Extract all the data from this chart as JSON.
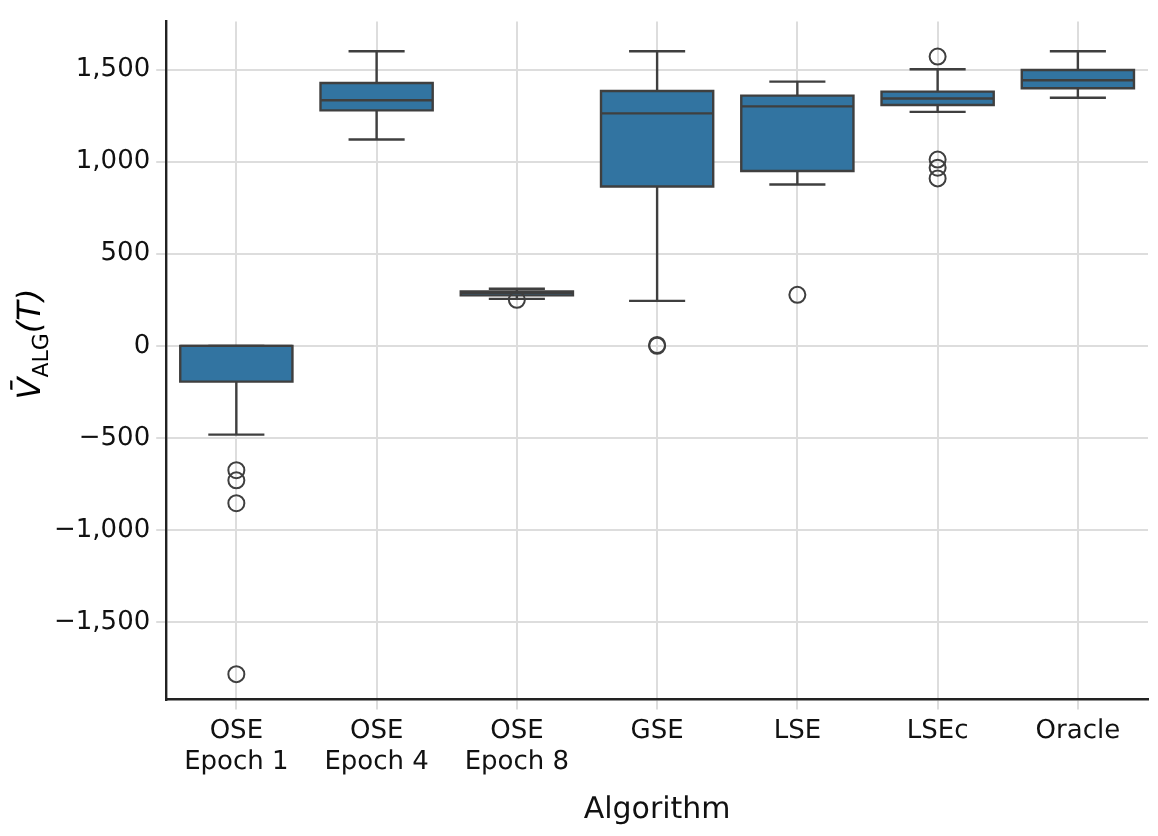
{
  "chart_data": {
    "type": "box",
    "xlabel": "Algorithm",
    "ylabel": "V̄$_{ALG}$(T)",
    "categories": [
      "OSE\nEpoch 1",
      "OSE\nEpoch 4",
      "OSE\nEpoch 8",
      "GSE",
      "LSE",
      "LSEc",
      "Oracle"
    ],
    "color": "#3274a1",
    "boxes": [
      {
        "low": -482,
        "q1": -194,
        "median": 0,
        "q3": 0,
        "high": 0,
        "outliers": [
          -675,
          -730,
          -854,
          -1782
        ]
      },
      {
        "low": 1120,
        "q1": 1278,
        "median": 1333,
        "q3": 1427,
        "high": 1599
      },
      {
        "low": 255,
        "q1": 274,
        "median": 288,
        "q3": 296,
        "high": 310,
        "outliers": [
          250
        ]
      },
      {
        "low": 244,
        "q1": 865,
        "median": 1262,
        "q3": 1383,
        "high": 1599,
        "outliers": [
          0,
          5
        ]
      },
      {
        "low": 876,
        "q1": 949,
        "median": 1300,
        "q3": 1358,
        "high": 1434,
        "outliers": [
          277
        ]
      },
      {
        "low": 1270,
        "q1": 1307,
        "median": 1343,
        "q3": 1380,
        "high": 1501,
        "outliers": [
          1570,
          1011,
          967,
          909
        ]
      },
      {
        "low": 1347,
        "q1": 1398,
        "median": 1442,
        "q3": 1497,
        "high": 1599
      }
    ],
    "ylim": [
      -1920,
      1760
    ],
    "yticks": [
      {
        "value": -1500,
        "label": "−1,500"
      },
      {
        "value": -1000,
        "label": "−1,000"
      },
      {
        "value": -500,
        "label": "−500"
      },
      0,
      {
        "value": 500,
        "label": "500"
      },
      {
        "value": 1000,
        "label": "1,000"
      },
      {
        "value": 1500,
        "label": "1,500"
      }
    ],
    "grid": true,
    "legend": false
  }
}
